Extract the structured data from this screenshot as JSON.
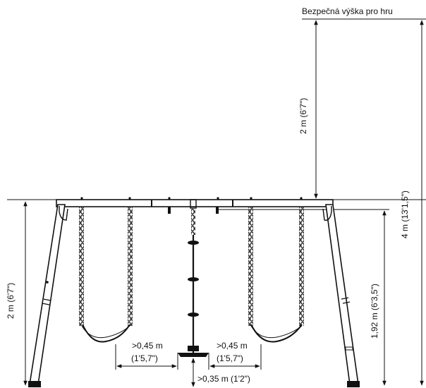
{
  "safety_height_label": "Bezpečná výška pro hru",
  "dimensions": {
    "left_frame_height": "2 m (6'7\")",
    "safety_zone_height": "2 m (6'7\")",
    "total_height": "4 m (13'1,5\")",
    "beam_height_right": "1,92 m (6'3,5\")",
    "clearance_left_m": ">0,45 m",
    "clearance_left_ft": "(1'5,7\")",
    "clearance_right_m": ">0,45 m",
    "clearance_right_ft": "(1'5,7\")",
    "ground_clearance": ">0,35 m (1'2\")"
  },
  "colors": {
    "line": "#111111",
    "chain": "#333333"
  }
}
